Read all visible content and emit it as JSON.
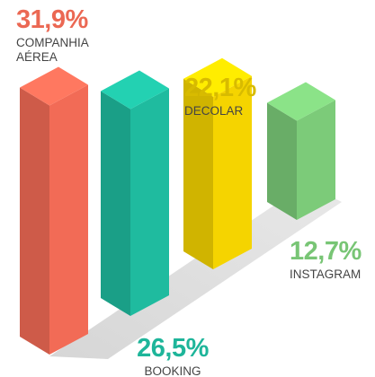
{
  "chart_data": {
    "type": "bar3d",
    "categories": [
      "COMPANHIA AÉREA",
      "BOOKING",
      "DECOLAR",
      "INSTAGRAM"
    ],
    "values": [
      31.9,
      26.5,
      22.1,
      12.7
    ],
    "value_labels": [
      "31,9%",
      "26,5%",
      "22,1%",
      "12,7%"
    ],
    "colors": [
      "#f26b56",
      "#1fbb9f",
      "#f5d400",
      "#7ccb79"
    ]
  }
}
